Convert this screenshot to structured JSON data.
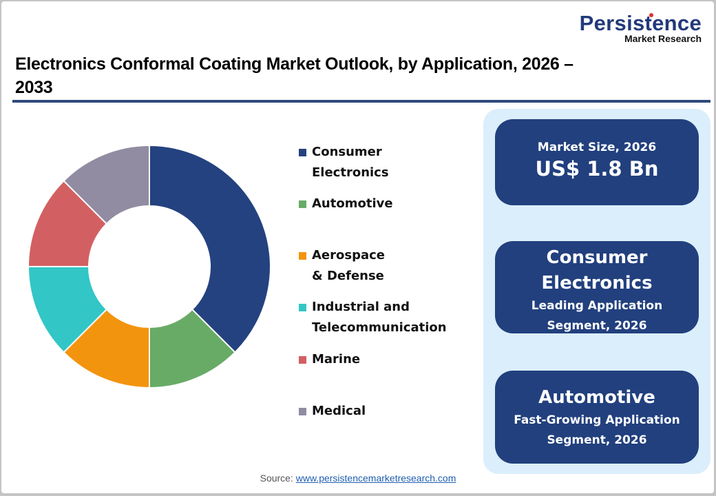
{
  "brand": {
    "logo_main": "Persistence",
    "logo_sub": "Market Research"
  },
  "header": {
    "title": "Electronics Conformal Coating Market Outlook, by Application, 2026 – 2033"
  },
  "colors": {
    "accent": "#22407e",
    "rule": "#2e4a7a",
    "panel_bg": "#dbeefb"
  },
  "legend": {
    "items": [
      {
        "label": "Consumer Electronics",
        "color": "#24427f"
      },
      {
        "label": "Automotive",
        "color": "#68ab66"
      },
      {
        "label": "Aerospace & Defense",
        "color": "#f3940e"
      },
      {
        "label": "Industrial and\nTelecommunication",
        "color": "#33c6c6"
      },
      {
        "label": "Marine",
        "color": "#d26063"
      },
      {
        "label": "Medical",
        "color": "#918ca2"
      }
    ]
  },
  "cards": {
    "market_size": {
      "label": "Market Size, 2026",
      "value": "US$ 1.8 Bn"
    },
    "leading": {
      "line1": "Consumer",
      "line2": "Electronics",
      "sub1": "Leading Application",
      "sub2": "Segment, 2026"
    },
    "fastest": {
      "head": "Automotive",
      "sub1": "Fast-Growing Application",
      "sub2": "Segment, 2026"
    }
  },
  "source": {
    "label": "Source: ",
    "link": "www.persistencemarketresearch.com"
  },
  "chart_data": {
    "type": "pie",
    "subtype": "donut",
    "title": "Electronics Conformal Coating Market Outlook, by Application, 2026 – 2033",
    "categories": [
      "Consumer Electronics",
      "Automotive",
      "Aerospace & Defense",
      "Industrial and Telecommunication",
      "Marine",
      "Medical"
    ],
    "values": [
      37.5,
      12.5,
      12.5,
      12.5,
      12.5,
      12.5
    ],
    "unit": "% share (estimated from segment angles)",
    "colors": [
      "#24427f",
      "#68ab66",
      "#f3940e",
      "#33c6c6",
      "#d26063",
      "#918ca2"
    ],
    "start_angle": "12 o'clock, clockwise",
    "legend_position": "right",
    "grid": false
  }
}
